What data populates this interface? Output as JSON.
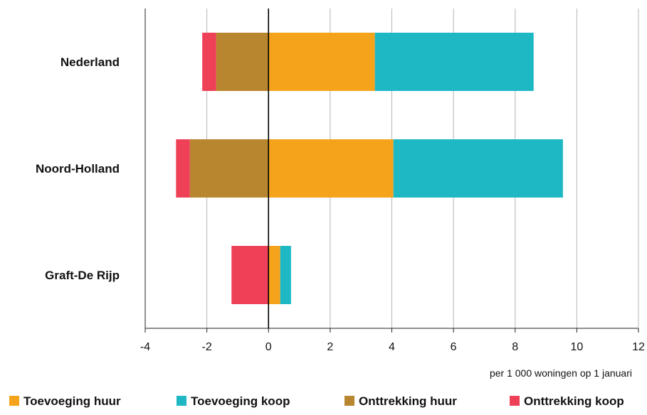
{
  "chart_data": {
    "type": "bar",
    "orientation": "horizontal",
    "stacked": true,
    "categories": [
      "Nederland",
      "Noord-Holland",
      "Graft-De Rijp"
    ],
    "series": [
      {
        "name": "Toevoeging huur",
        "color": "#F5A31B",
        "values": [
          3.45,
          4.05,
          0.38
        ]
      },
      {
        "name": "Toevoeging koop",
        "color": "#1DB8C4",
        "values": [
          5.15,
          5.5,
          0.35
        ]
      },
      {
        "name": "Onttrekking huur",
        "color": "#B8862E",
        "values": [
          -1.7,
          -2.55,
          0.0
        ]
      },
      {
        "name": "Onttrekking koop",
        "color": "#EE4157",
        "values": [
          -0.45,
          -0.45,
          -1.2
        ]
      }
    ],
    "xlim": [
      -4,
      12
    ],
    "xticks": [
      -4,
      -2,
      0,
      2,
      4,
      6,
      8,
      10,
      12
    ],
    "xlabel": "per 1 000 woningen op 1 januari",
    "grid": true,
    "legend_position": "bottom"
  }
}
